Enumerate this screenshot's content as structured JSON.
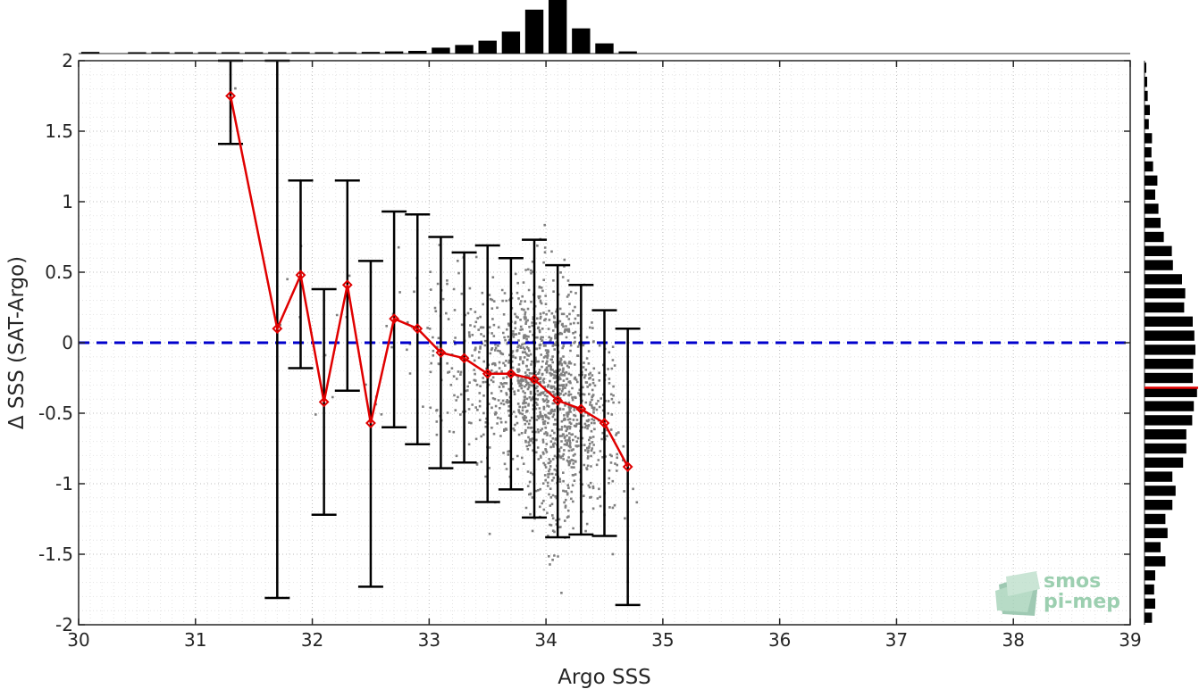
{
  "chart_data": {
    "type": "scatter",
    "xlabel": "Argo SSS",
    "ylabel": "Δ SSS (SAT-Argo)",
    "xlim": [
      30,
      39
    ],
    "ylim": [
      -2,
      2
    ],
    "xticks": [
      30,
      31,
      32,
      33,
      34,
      35,
      36,
      37,
      38,
      39
    ],
    "xtick_labels": [
      "30",
      "31",
      "32",
      "33",
      "34",
      "35",
      "36",
      "37",
      "38",
      "39"
    ],
    "yticks": [
      2,
      1.5,
      1,
      0.5,
      0,
      -0.5,
      -1,
      -1.5,
      -2
    ],
    "ytick_labels": [
      "2",
      "1.5",
      "1",
      "0.5",
      "0",
      "-0.5",
      "-1",
      "-1.5",
      "-2"
    ],
    "grid": true,
    "reference_line": {
      "y": 0,
      "style": "dashed",
      "color": "#0000cc"
    },
    "scatter_color": "#808080",
    "mean_color": "#e00000",
    "errorbar_color": "#000000",
    "binned_mean": {
      "x": [
        31.3,
        31.7,
        31.9,
        32.1,
        32.3,
        32.5,
        32.7,
        32.9,
        33.1,
        33.3,
        33.5,
        33.7,
        33.9,
        34.1,
        34.3,
        34.5,
        34.7
      ],
      "y": [
        1.75,
        0.1,
        0.48,
        -0.42,
        0.41,
        -0.57,
        0.17,
        0.1,
        -0.07,
        -0.11,
        -0.22,
        -0.22,
        -0.26,
        -0.41,
        -0.47,
        -0.57,
        -0.88
      ]
    },
    "error_bars": {
      "x": [
        31.3,
        31.7,
        31.9,
        32.1,
        32.3,
        32.5,
        32.7,
        32.9,
        33.1,
        33.3,
        33.5,
        33.7,
        33.9,
        34.1,
        34.3,
        34.5,
        34.7
      ],
      "lower": [
        1.41,
        -1.81,
        -0.18,
        -1.22,
        -0.34,
        -1.73,
        -0.6,
        -0.72,
        -0.89,
        -0.85,
        -1.13,
        -1.04,
        -1.24,
        -1.38,
        -1.36,
        -1.37,
        -1.86
      ],
      "upper": [
        2.0,
        2.0,
        1.15,
        0.38,
        1.15,
        0.58,
        0.93,
        0.91,
        0.75,
        0.64,
        0.69,
        0.6,
        0.73,
        0.55,
        0.41,
        0.23,
        0.1
      ]
    },
    "top_histogram": {
      "x": [
        30.1,
        30.5,
        30.7,
        30.9,
        31.1,
        31.3,
        31.5,
        31.7,
        31.9,
        32.1,
        32.3,
        32.5,
        32.7,
        32.9,
        33.1,
        33.3,
        33.5,
        33.7,
        33.9,
        34.1,
        34.3,
        34.5,
        34.7
      ],
      "relative_count": [
        0.03,
        0.01,
        0.01,
        0.01,
        0.02,
        0.02,
        0.01,
        0.02,
        0.02,
        0.02,
        0.02,
        0.03,
        0.04,
        0.05,
        0.11,
        0.16,
        0.24,
        0.41,
        0.82,
        1.0,
        0.47,
        0.19,
        0.04
      ]
    },
    "right_histogram": {
      "y": [
        1.95,
        1.85,
        1.75,
        1.65,
        1.55,
        1.45,
        1.35,
        1.25,
        1.15,
        1.05,
        0.95,
        0.85,
        0.75,
        0.65,
        0.55,
        0.45,
        0.35,
        0.25,
        0.15,
        0.05,
        -0.05,
        -0.15,
        -0.25,
        -0.35,
        -0.45,
        -0.55,
        -0.65,
        -0.75,
        -0.85,
        -0.95,
        -1.05,
        -1.15,
        -1.25,
        -1.35,
        -1.45,
        -1.55,
        -1.65,
        -1.75,
        -1.85,
        -1.95
      ],
      "relative_count": [
        0.03,
        0.05,
        0.06,
        0.1,
        0.08,
        0.14,
        0.13,
        0.16,
        0.24,
        0.2,
        0.26,
        0.3,
        0.36,
        0.51,
        0.53,
        0.7,
        0.76,
        0.74,
        0.9,
        0.93,
        0.95,
        0.91,
        0.9,
        0.98,
        0.92,
        0.89,
        0.78,
        0.78,
        0.72,
        0.52,
        0.58,
        0.52,
        0.39,
        0.43,
        0.3,
        0.39,
        0.2,
        0.18,
        0.2,
        0.14
      ],
      "mean_y": -0.32
    }
  },
  "logo": {
    "line1": "smos",
    "line2": "pi-mep"
  }
}
